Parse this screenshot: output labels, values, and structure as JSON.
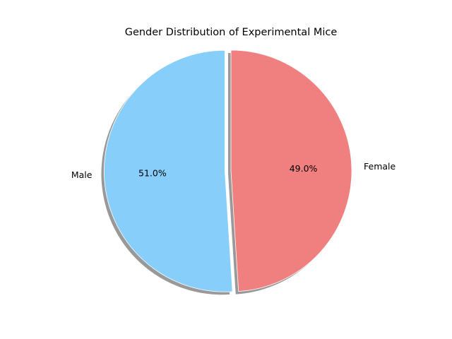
{
  "chart_data": {
    "type": "pie",
    "title": "Gender Distribution of Experimental Mice",
    "start_angle_deg": 90,
    "counterclockwise": true,
    "shadow": true,
    "explode": [
      0.05,
      0
    ],
    "slices": [
      {
        "label": "Male",
        "value": 51.0,
        "pct_label": "51.0%",
        "color": "#87CEFA"
      },
      {
        "label": "Female",
        "value": 49.0,
        "pct_label": "49.0%",
        "color": "#F08080"
      }
    ]
  }
}
